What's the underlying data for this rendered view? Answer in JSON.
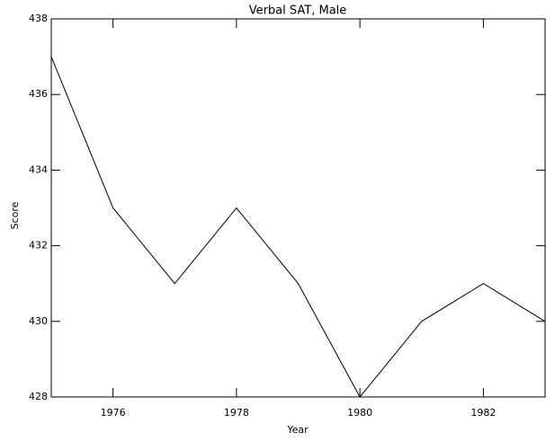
{
  "chart_data": {
    "type": "line",
    "title": "Verbal SAT, Male",
    "x_label": "Year",
    "y_label": "Score",
    "x": [
      1975,
      1976,
      1977,
      1978,
      1979,
      1980,
      1981,
      1982,
      1983
    ],
    "values": [
      437,
      433,
      431,
      433,
      431,
      428,
      430,
      431,
      430
    ],
    "color": "#000000",
    "xlim": [
      1975,
      1983
    ],
    "xticks": [
      1976,
      1978,
      1980,
      1982
    ],
    "ylim": [
      428,
      438
    ],
    "yticks": [
      428,
      430,
      432,
      434,
      436,
      438
    ],
    "grid": false
  }
}
